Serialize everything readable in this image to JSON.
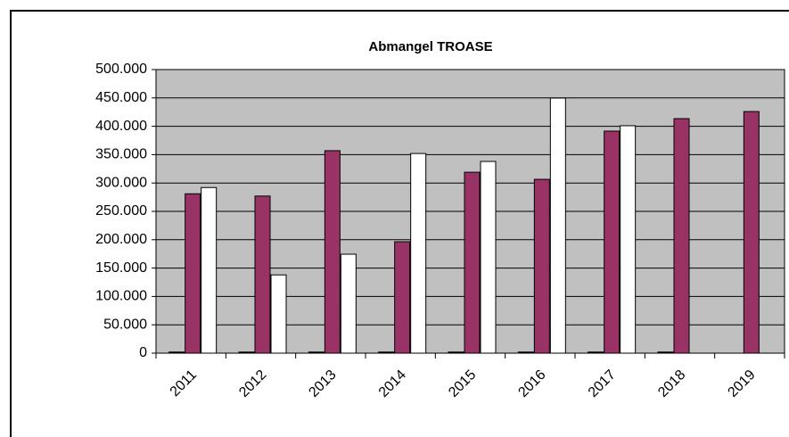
{
  "chart_data": {
    "type": "bar",
    "title": "Abmangel  TROASE",
    "categories": [
      "2011",
      "2012",
      "2013",
      "2014",
      "2015",
      "2016",
      "2017",
      "2018",
      "2019"
    ],
    "series": [
      {
        "color": "#000000",
        "values": [
          2000,
          2000,
          2000,
          2000,
          2000,
          2000,
          2000,
          2000,
          null
        ]
      },
      {
        "color": "#993366",
        "values": [
          281000,
          277000,
          357000,
          196500,
          319000,
          306500,
          391500,
          413500,
          426000
        ]
      },
      {
        "color": "#ffffff",
        "values": [
          292000,
          138000,
          174500,
          352000,
          338000,
          449700,
          401000,
          null,
          null
        ]
      }
    ],
    "ylim": [
      0,
      500000
    ],
    "yticks": [
      0,
      {
        "value": 50000,
        "label": "50.000"
      },
      {
        "value": 100000,
        "label": "100.000"
      },
      {
        "value": 150000,
        "label": "150.000"
      },
      {
        "value": 200000,
        "label": "200.000"
      },
      {
        "value": 250000,
        "label": "250.000"
      },
      {
        "value": 300000,
        "label": "300.000"
      },
      {
        "value": 350000,
        "label": "350.000"
      },
      {
        "value": 400000,
        "label": "400.000"
      },
      {
        "value": 450000,
        "label": "450.000"
      },
      {
        "value": 500000,
        "label": "500.000"
      }
    ],
    "grid": true,
    "plot_background": "#c0c0c0"
  }
}
